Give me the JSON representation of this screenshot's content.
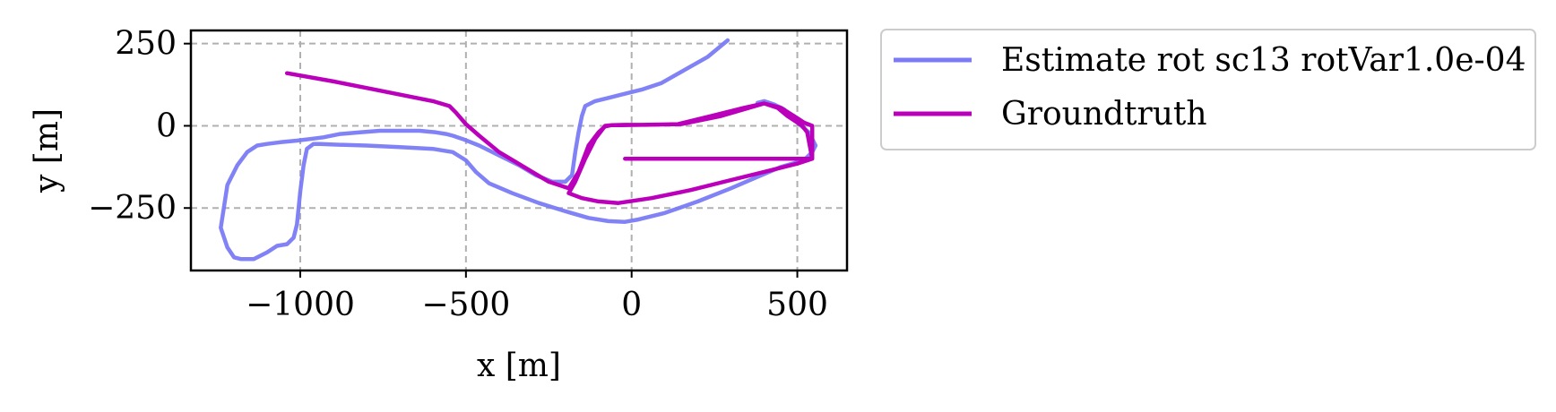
{
  "chart_data": {
    "type": "line",
    "xlabel": "x [m]",
    "ylabel": "y [m]",
    "xlim": [
      -1330,
      650
    ],
    "ylim": [
      -440,
      290
    ],
    "xticks": [
      -1000,
      -500,
      0,
      500
    ],
    "xtick_labels": [
      "−1000",
      "−500",
      "0",
      "500"
    ],
    "yticks": [
      250,
      0,
      -250
    ],
    "ytick_labels": [
      "250",
      "0",
      "−250"
    ],
    "grid": true,
    "legend_position": "outside-right-top",
    "series": [
      {
        "name": "Estimate rot sc13 rotVar1.0e-04",
        "color": "#7b7bf7",
        "x": [
          290,
          230,
          160,
          90,
          30,
          -30,
          -70,
          -110,
          -140,
          -150,
          -160,
          -170,
          -180,
          -200,
          -240,
          -290,
          -340,
          -400,
          -460,
          -510,
          -540,
          -560,
          -590,
          -640,
          -700,
          -760,
          -820,
          -880,
          -930,
          -970,
          -1010,
          -1060,
          -1100,
          -1130,
          -1160,
          -1190,
          -1220,
          -1240,
          -1220,
          -1200,
          -1180,
          -1140,
          -1100,
          -1070,
          -1040,
          -1020,
          -1010,
          -1000,
          -990,
          -980,
          -960,
          -940,
          -900,
          -800,
          -700,
          -600,
          -540,
          -500,
          -470,
          -430,
          -360,
          -280,
          -200,
          -130,
          -70,
          -20,
          20,
          100,
          200,
          300,
          380,
          450,
          520,
          545,
          555,
          535,
          500,
          460,
          430,
          400,
          380
        ],
        "y": [
          260,
          210,
          170,
          130,
          110,
          95,
          85,
          75,
          60,
          30,
          -20,
          -80,
          -150,
          -170,
          -170,
          -150,
          -120,
          -90,
          -60,
          -40,
          -30,
          -25,
          -20,
          -15,
          -15,
          -15,
          -20,
          -25,
          -35,
          -40,
          -45,
          -50,
          -55,
          -60,
          -80,
          -120,
          -180,
          -310,
          -370,
          -400,
          -405,
          -405,
          -385,
          -365,
          -360,
          -340,
          -300,
          -200,
          -120,
          -70,
          -55,
          -55,
          -57,
          -60,
          -65,
          -70,
          -80,
          -105,
          -140,
          -175,
          -205,
          -235,
          -260,
          -280,
          -290,
          -292,
          -285,
          -265,
          -230,
          -190,
          -155,
          -125,
          -105,
          -80,
          -60,
          -20,
          10,
          50,
          65,
          75,
          70
        ]
      },
      {
        "name": "Groundtruth",
        "color": "#bb00bb",
        "x": [
          -1040,
          -900,
          -800,
          -700,
          -600,
          -550,
          -530,
          -500,
          -460,
          -400,
          -350,
          -300,
          -250,
          -190,
          -160,
          -130,
          -100,
          -80,
          -60,
          -20,
          40,
          140,
          240,
          340,
          400,
          440,
          470,
          500,
          515,
          530,
          545,
          500,
          400,
          300,
          180,
          60,
          -40,
          -100,
          -150,
          -190,
          -170,
          -140,
          -110,
          -80,
          -60,
          -30,
          30,
          150,
          270,
          400,
          450,
          490,
          520,
          545,
          545,
          500,
          420,
          340,
          240,
          140,
          40,
          -20
        ],
        "y": [
          160,
          135,
          115,
          95,
          75,
          60,
          40,
          5,
          -30,
          -80,
          -110,
          -140,
          -170,
          -190,
          -140,
          -60,
          -20,
          -2,
          2,
          3,
          3,
          5,
          30,
          55,
          68,
          55,
          30,
          10,
          0,
          -20,
          -100,
          -115,
          -140,
          -165,
          -195,
          -220,
          -235,
          -230,
          -220,
          -205,
          -170,
          -100,
          -40,
          0,
          2,
          2,
          3,
          5,
          30,
          68,
          55,
          30,
          10,
          0,
          -100,
          -100,
          -100,
          -100,
          -100,
          -100,
          -100,
          -100
        ]
      }
    ]
  }
}
